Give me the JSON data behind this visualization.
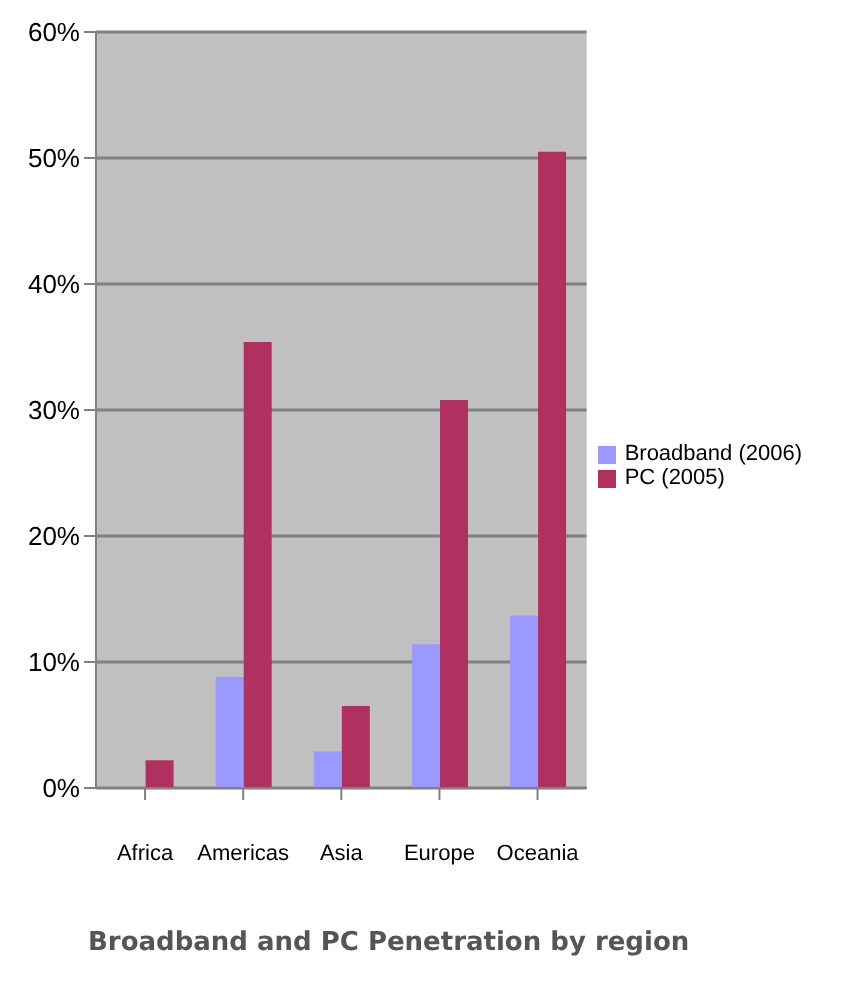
{
  "chart_data": {
    "type": "bar",
    "title": "Broadband and PC Penetration by region",
    "categories": [
      "Africa",
      "Americas",
      "Asia",
      "Europe",
      "Oceania"
    ],
    "series": [
      {
        "name": "Broadband (2006)",
        "color": "#9999ff",
        "values": [
          0,
          8.8,
          2.9,
          11.4,
          13.7
        ]
      },
      {
        "name": "PC (2005)",
        "color": "#b03060",
        "values": [
          2.2,
          35.4,
          6.5,
          30.8,
          50.5
        ]
      }
    ],
    "ylim": [
      0,
      60
    ],
    "yticks": [
      {
        "value": 0,
        "label": "0%"
      },
      {
        "value": 10,
        "label": "10%"
      },
      {
        "value": 20,
        "label": "20%"
      },
      {
        "value": 30,
        "label": "30%"
      },
      {
        "value": 40,
        "label": "40%"
      },
      {
        "value": 50,
        "label": "50%"
      },
      {
        "value": 60,
        "label": "60%"
      }
    ],
    "grid": "y",
    "legend": "right"
  }
}
